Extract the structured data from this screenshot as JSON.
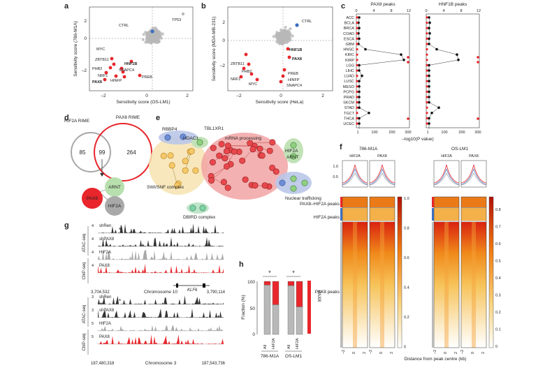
{
  "panels": {
    "a": {
      "label": "a",
      "xlabel": "Sensitivity score (OS-LM1)",
      "ylabel": "Sensitivity score (786-M1A)",
      "xticks": [
        "–2",
        "0",
        "2"
      ],
      "yticks": [
        "2",
        "0",
        "–2"
      ],
      "genes": [
        "CTRL",
        "TP53",
        "MYC",
        "ZBTB11",
        "PHB2",
        "NRF1",
        "SNAPC4",
        "HNF1B",
        "PAX8",
        "HINFP",
        "PREB"
      ]
    },
    "b": {
      "label": "b",
      "xlabel": "Sensitivity score (HeLa)",
      "ylabel": "Sensitivity score (MDA-MB-231)",
      "xticks": [
        "–2",
        "0",
        "2"
      ],
      "yticks": [
        "2",
        "0",
        "–2"
      ],
      "genes": [
        "CTRL",
        "HNF1B",
        "PAX8",
        "ZBTB11",
        "PHB2",
        "NRF1",
        "MYC",
        "PREB",
        "HINFP",
        "SNAPC4"
      ]
    },
    "c": {
      "label": "c",
      "title_left": "PAX8 peaks",
      "title_right": "HNF1B peaks",
      "top_ticks": [
        "0",
        "4",
        "8",
        "12"
      ],
      "bottom_ticks": [
        "1",
        "100",
        "200",
        "300"
      ],
      "xlabel": "–log10(P value)",
      "cancers": [
        "ACC",
        "BCLA",
        "BRCA",
        "COAD",
        "ESCA",
        "GBM",
        "HNSC",
        "KIRC",
        "KIRP",
        "LGG",
        "LIHC",
        "LUAD",
        "LUSC",
        "MESO",
        "PCPG",
        "PRAD",
        "SKCM",
        "STAD",
        "TGCT",
        "THCA",
        "UCEC"
      ]
    },
    "d": {
      "label": "d",
      "left_set": "HIF2A RIME",
      "right_set": "PAX8 RIME",
      "left_count": "85",
      "overlap_count": "99",
      "right_count": "264",
      "nodes": [
        "ARNT",
        "PAX8",
        "HIF2A"
      ]
    },
    "e": {
      "label": "e",
      "labels": [
        "RBBP4",
        "HDAC1",
        "TBL1XR1",
        "mRNA processing",
        "HIF2A",
        "ARNT",
        "SWI/SNF complex",
        "DBIRD complex",
        "Nuclear trafficking"
      ]
    },
    "f": {
      "label": "f",
      "lines": [
        "786-M1A",
        "OS-LM1"
      ],
      "cols": [
        "HIF2A",
        "PAX8"
      ],
      "profile_ticks": [
        "1.0",
        "0.5"
      ],
      "groups": [
        "PAX8–HIF2A peaks",
        "HIF2A peaks",
        "PAX8 peaks"
      ],
      "colorbar_left": [
        "1.0",
        "0.8",
        "0.6",
        "0.4",
        "0.2",
        "0"
      ],
      "colorbar_right": [
        "0.8",
        "0.7",
        "0.6",
        "0.5",
        "0.4",
        "0.3",
        "0.2",
        "0.1",
        "0"
      ],
      "xticks": [
        "–2",
        "0",
        "2"
      ],
      "xlabel": "Distance from peak centre (kb)"
    },
    "g": {
      "label": "g",
      "top": {
        "tracks": [
          "shRen",
          "shPAX8",
          "HIF2A",
          "PAX8"
        ],
        "scales": [
          "4",
          "4",
          "4",
          "4"
        ],
        "groups": [
          "ATAC-seq",
          "ChIP-seq"
        ],
        "start": "3,704,532",
        "chrom": "Chromosome 10",
        "end": "3,790,114",
        "gene": "KLF6",
        "mark": "*"
      },
      "bottom": {
        "tracks": [
          "shRen",
          "shPAX8",
          "HIF2A",
          "PAX8"
        ],
        "scales": [
          "3",
          "3",
          "5",
          "5"
        ],
        "groups": [
          "ATAC-seq",
          "ChIP-seq"
        ],
        "start": "187,480,318",
        "chrom": "Chromosome 3",
        "end": "187,543,736",
        "mark": "*"
      }
    },
    "h": {
      "label": "h",
      "ylabel": "Fraction (%)",
      "yticks": [
        "100",
        "50",
        "0"
      ],
      "bar_labels": [
        "All",
        "HIF2A",
        "All",
        "HIF2A"
      ],
      "group_labels": [
        "786-M1A",
        "OS-LM1"
      ],
      "star": "*",
      "legend": "PAX8",
      "chart_data": {
        "type": "bar",
        "categories": [
          "All",
          "HIF2A",
          "All",
          "HIF2A"
        ],
        "series": [
          {
            "name": "PAX8",
            "values": [
              7,
              44,
              8,
              48
            ]
          },
          {
            "values": [
              93,
              56,
              92,
              52
            ]
          }
        ],
        "ylim": [
          0,
          100
        ]
      }
    }
  },
  "colors": {
    "red": "#e8262b",
    "grey": "#b5b5b5",
    "blue": "#3b6fc0",
    "dark": "#333333"
  }
}
